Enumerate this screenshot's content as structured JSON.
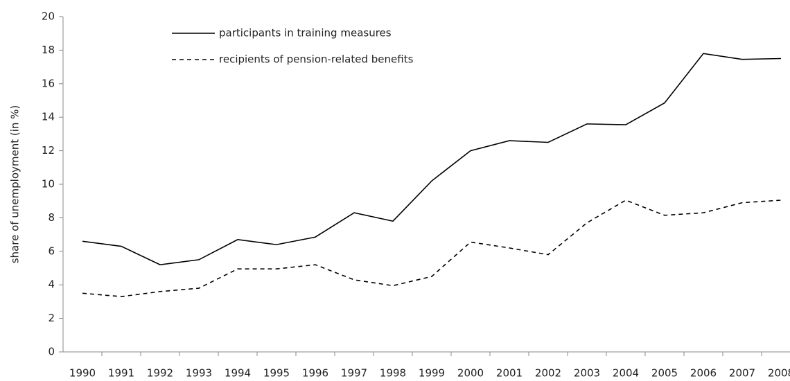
{
  "chart_data": {
    "type": "line",
    "y_label": "share of unemployment (in %)",
    "categories": [
      "1990",
      "1991",
      "1992",
      "1993",
      "1994",
      "1995",
      "1996",
      "1997",
      "1998",
      "1999",
      "2000",
      "2001",
      "2002",
      "2003",
      "2004",
      "2005",
      "2006",
      "2007",
      "2008"
    ],
    "series": [
      {
        "name": "participants in training measures",
        "color": "#000000",
        "dash": "solid",
        "values": [
          6.6,
          6.3,
          5.2,
          5.5,
          6.7,
          6.4,
          6.85,
          8.3,
          7.8,
          10.2,
          12.0,
          12.6,
          12.5,
          13.6,
          13.55,
          14.85,
          17.8,
          17.45,
          17.5
        ]
      },
      {
        "name": "recipients of pension-related benefits",
        "color": "#000000",
        "dash": "dashed",
        "values": [
          3.5,
          3.3,
          3.6,
          3.8,
          4.95,
          4.95,
          5.2,
          4.3,
          3.95,
          4.5,
          6.55,
          6.2,
          5.8,
          7.7,
          9.05,
          8.15,
          8.3,
          8.9,
          9.05
        ]
      }
    ],
    "ylim": [
      0,
      20
    ],
    "yticks": [
      0,
      2,
      4,
      6,
      8,
      10,
      12,
      14,
      16,
      18,
      20
    ],
    "grid": false
  }
}
